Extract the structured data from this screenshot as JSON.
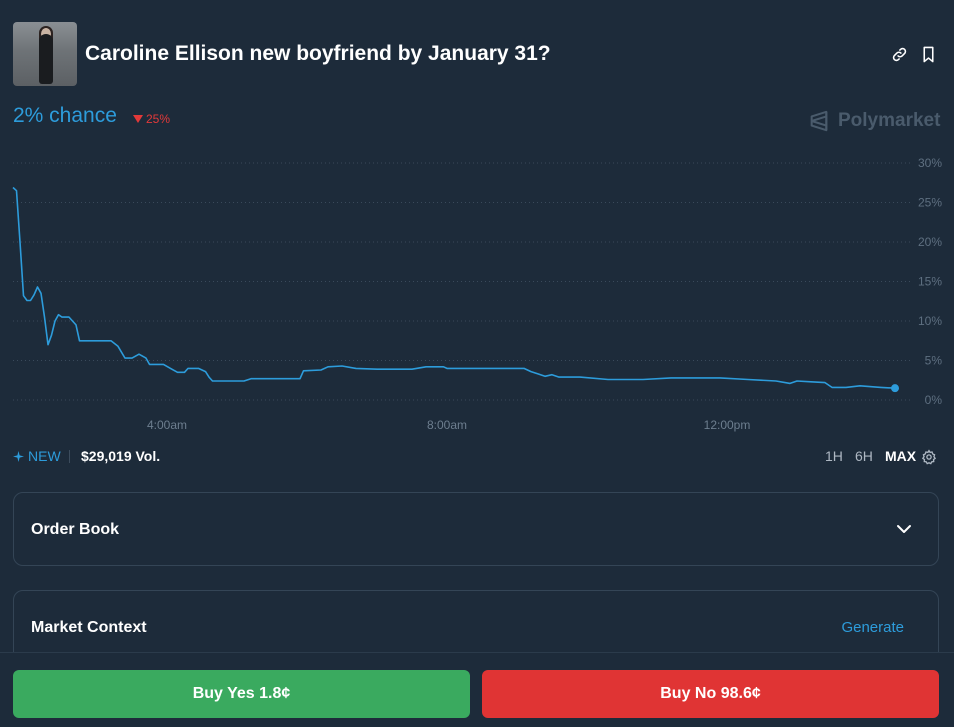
{
  "market": {
    "title": "Caroline Ellison new boyfriend by January 31?",
    "chance": "2% chance",
    "delta": "25%",
    "brand": "Polymarket"
  },
  "stats": {
    "new_label": "NEW",
    "volume": "$29,019 Vol."
  },
  "ranges": [
    "1H",
    "6H",
    "MAX"
  ],
  "active_range": "MAX",
  "panels": {
    "order_book": "Order Book",
    "market_context": "Market Context",
    "generate": "Generate"
  },
  "actions": {
    "buy_yes": "Buy Yes 1.8¢",
    "buy_no": "Buy No 98.6¢"
  },
  "colors": {
    "accent": "#2d9cdb",
    "yes": "#3aaa5f",
    "no": "#e03434",
    "down": "#e23939"
  },
  "chart_data": {
    "type": "line",
    "title": "",
    "xlabel": "",
    "ylabel": "",
    "x_ticks": [
      "4:00am",
      "8:00am",
      "12:00pm"
    ],
    "x_tick_hours": [
      4,
      8,
      12
    ],
    "y_ticks": [
      "30%",
      "25%",
      "20%",
      "15%",
      "10%",
      "5%",
      "0%"
    ],
    "ylim": [
      0,
      30
    ],
    "xlim_hours": [
      1.8,
      14.4
    ],
    "grid": true,
    "series": [
      {
        "points": [
          [
            1.8,
            26.9
          ],
          [
            1.85,
            26.5
          ],
          [
            1.9,
            20.0
          ],
          [
            1.95,
            13.2
          ],
          [
            2.0,
            12.6
          ],
          [
            2.05,
            12.6
          ],
          [
            2.1,
            13.3
          ],
          [
            2.15,
            14.3
          ],
          [
            2.2,
            13.5
          ],
          [
            2.25,
            10.5
          ],
          [
            2.3,
            7.0
          ],
          [
            2.35,
            8.2
          ],
          [
            2.4,
            10.0
          ],
          [
            2.45,
            10.8
          ],
          [
            2.5,
            10.5
          ],
          [
            2.6,
            10.5
          ],
          [
            2.7,
            9.5
          ],
          [
            2.75,
            7.5
          ],
          [
            3.0,
            7.5
          ],
          [
            3.2,
            7.5
          ],
          [
            3.3,
            6.8
          ],
          [
            3.4,
            5.3
          ],
          [
            3.5,
            5.3
          ],
          [
            3.6,
            5.8
          ],
          [
            3.7,
            5.3
          ],
          [
            3.75,
            4.5
          ],
          [
            3.95,
            4.5
          ],
          [
            4.05,
            4.0
          ],
          [
            4.15,
            3.5
          ],
          [
            4.25,
            3.5
          ],
          [
            4.3,
            4.0
          ],
          [
            4.45,
            4.0
          ],
          [
            4.55,
            3.6
          ],
          [
            4.6,
            2.9
          ],
          [
            4.65,
            2.4
          ],
          [
            5.1,
            2.4
          ],
          [
            5.2,
            2.7
          ],
          [
            5.5,
            2.7
          ],
          [
            5.9,
            2.7
          ],
          [
            5.95,
            3.7
          ],
          [
            6.2,
            3.8
          ],
          [
            6.3,
            4.2
          ],
          [
            6.5,
            4.3
          ],
          [
            6.7,
            4.0
          ],
          [
            7.0,
            3.9
          ],
          [
            7.5,
            3.9
          ],
          [
            7.7,
            4.2
          ],
          [
            7.95,
            4.2
          ],
          [
            8.0,
            4.0
          ],
          [
            8.3,
            4.0
          ],
          [
            8.8,
            4.0
          ],
          [
            9.1,
            4.0
          ],
          [
            9.2,
            3.6
          ],
          [
            9.3,
            3.3
          ],
          [
            9.4,
            3.0
          ],
          [
            9.5,
            3.2
          ],
          [
            9.6,
            2.9
          ],
          [
            9.9,
            2.9
          ],
          [
            10.3,
            2.6
          ],
          [
            10.8,
            2.6
          ],
          [
            11.2,
            2.8
          ],
          [
            11.9,
            2.8
          ],
          [
            12.3,
            2.6
          ],
          [
            12.7,
            2.4
          ],
          [
            12.9,
            2.1
          ],
          [
            13.0,
            2.4
          ],
          [
            13.2,
            2.3
          ],
          [
            13.4,
            2.2
          ],
          [
            13.5,
            1.6
          ],
          [
            13.7,
            1.6
          ],
          [
            13.9,
            1.8
          ],
          [
            14.2,
            1.6
          ],
          [
            14.4,
            1.5
          ]
        ]
      }
    ]
  }
}
